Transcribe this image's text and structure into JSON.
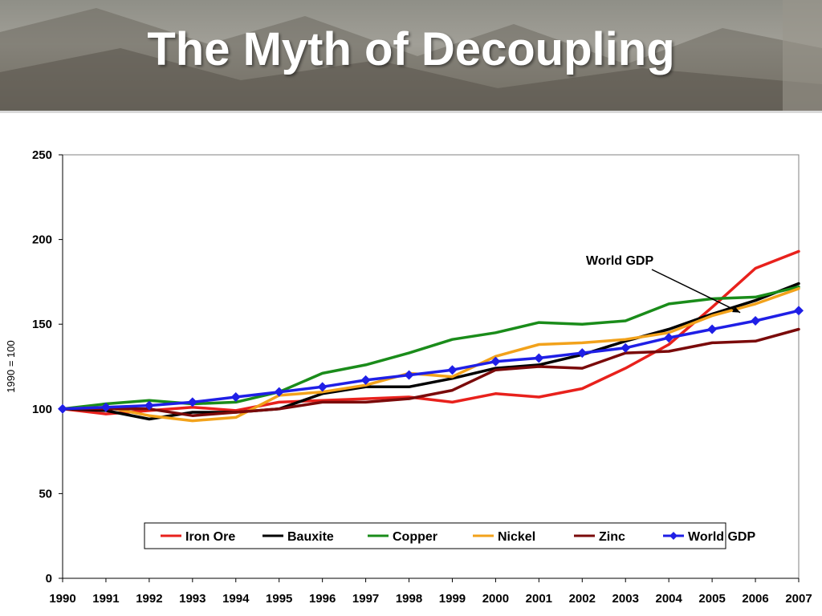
{
  "slide": {
    "title": "The Myth of Decoupling"
  },
  "chart_data": {
    "type": "line",
    "title": "",
    "xlabel": "",
    "ylabel": "1990 = 100",
    "ylim": [
      0,
      250
    ],
    "yticks": [
      0,
      50,
      100,
      150,
      200,
      250
    ],
    "grid": false,
    "legend_position": "bottom-inside",
    "x": [
      "1990",
      "1991",
      "1992",
      "1993",
      "1994",
      "1995",
      "1996",
      "1997",
      "1998",
      "1999",
      "2000",
      "2001",
      "2002",
      "2003",
      "2004",
      "2005",
      "2006",
      "2007"
    ],
    "series": [
      {
        "name": "Iron Ore",
        "color": "#e8211c",
        "marker": "none",
        "values": [
          100,
          97,
          99,
          101,
          99,
          104,
          105,
          106,
          107,
          104,
          109,
          107,
          112,
          124,
          138,
          160,
          183,
          193
        ]
      },
      {
        "name": "Bauxite",
        "color": "#000000",
        "marker": "none",
        "values": [
          100,
          99,
          94,
          98,
          98,
          100,
          109,
          113,
          113,
          118,
          124,
          126,
          132,
          140,
          147,
          156,
          164,
          174
        ]
      },
      {
        "name": "Copper",
        "color": "#1a8c1a",
        "marker": "none",
        "values": [
          100,
          103,
          105,
          103,
          104,
          110,
          121,
          126,
          133,
          141,
          145,
          151,
          150,
          152,
          162,
          165,
          166,
          172
        ]
      },
      {
        "name": "Nickel",
        "color": "#f2a21b",
        "marker": "none",
        "values": [
          100,
          101,
          96,
          93,
          95,
          108,
          110,
          114,
          121,
          119,
          131,
          138,
          139,
          141,
          145,
          155,
          162,
          171
        ]
      },
      {
        "name": "Zinc",
        "color": "#7a0a0a",
        "marker": "none",
        "values": [
          100,
          100,
          100,
          96,
          98,
          100,
          104,
          104,
          106,
          111,
          123,
          125,
          124,
          133,
          134,
          139,
          140,
          147
        ]
      },
      {
        "name": "World GDP",
        "color": "#1f1fe6",
        "marker": "diamond",
        "values": [
          100,
          101,
          102,
          104,
          107,
          110,
          113,
          117,
          120,
          123,
          128,
          130,
          133,
          136,
          142,
          147,
          152,
          158
        ]
      }
    ],
    "annotations": [
      {
        "text": "World GDP",
        "points_to": {
          "x": "2005",
          "y": 155
        }
      }
    ]
  }
}
